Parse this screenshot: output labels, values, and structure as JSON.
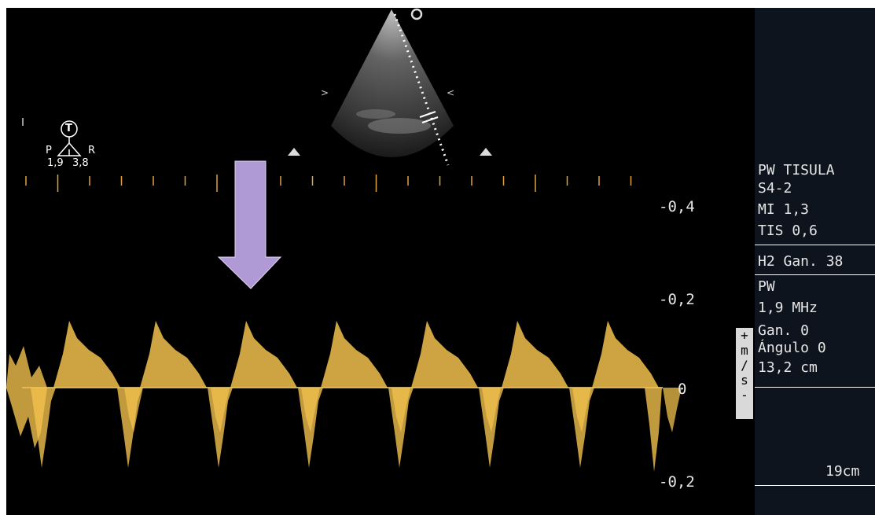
{
  "scale": {
    "top_label": "-0,4",
    "mid_label": "-0,2",
    "zero_label": "0",
    "bottom_label": "-0,2",
    "unit_letters": [
      "+",
      "m",
      "/",
      "s",
      "-"
    ]
  },
  "orientation": {
    "marker_letter": "T",
    "left_letter": "P",
    "right_letter": "R",
    "value_left": "1,9",
    "value_right": "3,8"
  },
  "sidebar": {
    "mode_title": "PW TISULA",
    "probe": "S4-2",
    "mi": "MI 1,3",
    "tis": "TIS 0,6",
    "harmonic_gain": "H2  Gan. 38",
    "pw_label": "PW",
    "frequency": "1,9 MHz",
    "gain": "Gan. 0",
    "angle": "Ángulo 0",
    "depth": "13,2 cm",
    "sweep": "19cm"
  },
  "colors": {
    "waveform": "#f2c14e",
    "arrow": "#b09ad6",
    "baseline": "#f0d88a",
    "panel": "#0e141d"
  }
}
